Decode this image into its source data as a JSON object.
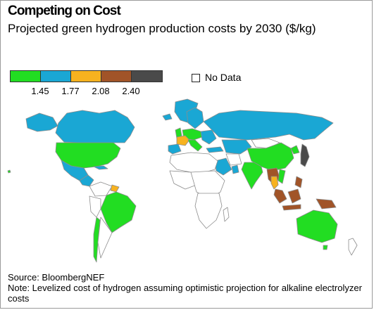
{
  "header": {
    "title": "Competing on Cost",
    "subtitle": "Projected green hydrogen production costs by 2030 ($/kg)"
  },
  "legend": {
    "colors": [
      "#22dd22",
      "#1aa7d4",
      "#f7b21f",
      "#a15428",
      "#4a4a4a"
    ],
    "ticks": [
      "1.45",
      "1.77",
      "2.08",
      "2.40"
    ],
    "no_data_label": "No Data",
    "no_data_color": "#ffffff"
  },
  "map": {
    "land_stroke": "#8c8c8c"
  },
  "footer": {
    "source": "Source: BloombergNEF",
    "note": "Note: Levelized cost of hydrogen assuming optimistic projection for alkaline electrolyzer costs"
  }
}
